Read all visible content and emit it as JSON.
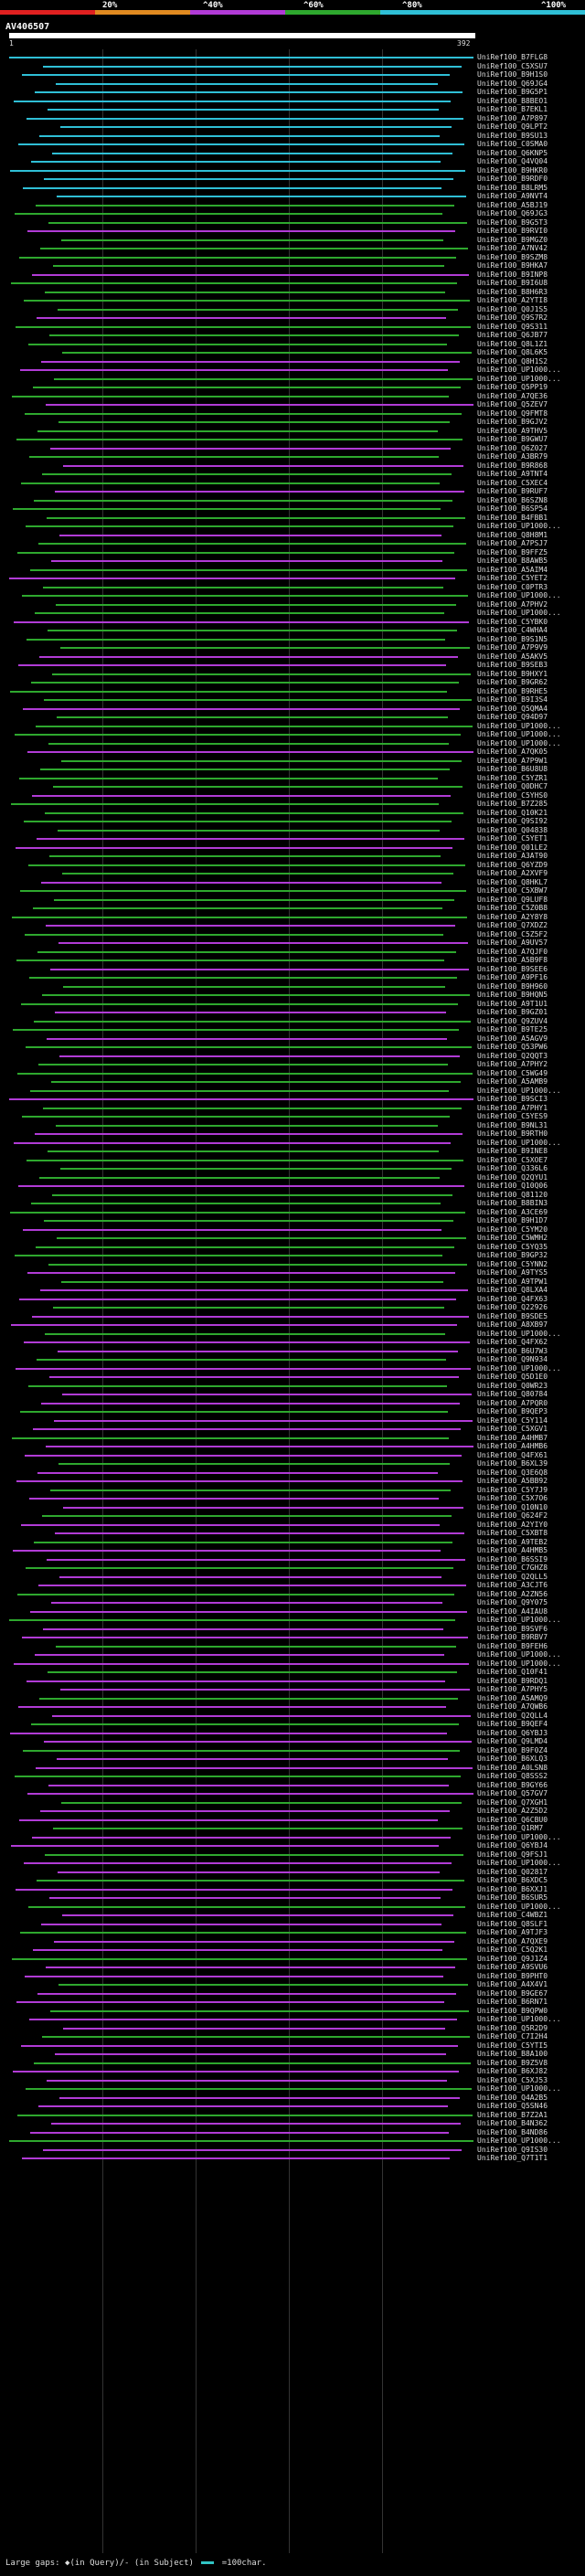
{
  "scale": {
    "ticks": [
      "20%",
      "^40%",
      "^60%",
      "^80%",
      "^100%"
    ],
    "colors": [
      "#e02020",
      "#e08a20",
      "#b13bd6",
      "#2ea82e",
      "#2fbfd6"
    ]
  },
  "query": {
    "title": "AV406507",
    "start": "1",
    "end": "392"
  },
  "legend": {
    "text": "Large gaps: ◆(in Query)/- (in Subject)",
    "segment_label": "=100char."
  },
  "hits": [
    "UniRef100_B7FLG8",
    "UniRef100_C5XSU7",
    "UniRef100_B9H1S0",
    "UniRef100_Q69JG4",
    "UniRef100_B9G5P1",
    "UniRef100_B8BEO1",
    "UniRef100_B7EKL1",
    "UniRef100_A7P897",
    "UniRef100_Q9LPT2",
    "UniRef100_B9SU13",
    "UniRef100_C0SMA0",
    "UniRef100_Q6KNP5",
    "UniRef100_Q4VQ04",
    "UniRef100_B9HKR0",
    "UniRef100_B9RDF0",
    "UniRef100_B8LRM5",
    "UniRef100_A9NVT4",
    "UniRef100_A5BJ19",
    "UniRef100_Q69JG3",
    "UniRef100_B9G5T3",
    "UniRef100_B9RVI0",
    "UniRef100_B9MGZ0",
    "UniRef100_A7NV42",
    "UniRef100_B9SZM8",
    "UniRef100_B9HKA7",
    "UniRef100_B9INP8",
    "UniRef100_B9I6U8",
    "UniRef100_B8H6R3",
    "UniRef100_A2YTI8",
    "UniRef100_Q0J1S5",
    "UniRef100_Q9S7R2",
    "UniRef100_Q9S311",
    "UniRef100_Q6JB77",
    "UniRef100_Q8L1Z1",
    "UniRef100_Q8L6K5",
    "UniRef100_Q8H1S2",
    "UniRef100_UP1000...",
    "UniRef100_UP1000...",
    "UniRef100_Q5PP19",
    "UniRef100_A7QE36",
    "UniRef100_Q5ZEV7",
    "UniRef100_Q9FMT8",
    "UniRef100_B9GJV2",
    "UniRef100_A9THV5",
    "UniRef100_B9GWU7",
    "UniRef100_Q6Z027",
    "UniRef100_A3BR79",
    "UniRef100_B9R868",
    "UniRef100_A9TNT4",
    "UniRef100_C5XEC4",
    "UniRef100_B9RUF7",
    "UniRef100_B6SZN8",
    "UniRef100_B6SP54",
    "UniRef100_B4FBB1",
    "UniRef100_UP1000...",
    "UniRef100_Q8H8M1",
    "UniRef100_A7PSJ7",
    "UniRef100_B9FFZ5",
    "UniRef100_B8AWB5",
    "UniRef100_A5AIM4",
    "UniRef100_C5YET2",
    "UniRef100_C0PTR3",
    "UniRef100_UP1000...",
    "UniRef100_A7PHV2",
    "UniRef100_UP1000...",
    "UniRef100_C5YBK0",
    "UniRef100_C4WHA4",
    "UniRef100_B9S1N5",
    "UniRef100_A7P9V9",
    "UniRef100_A5AKV5",
    "UniRef100_B9SEB3",
    "UniRef100_B9HXY1",
    "UniRef100_B9GR62",
    "UniRef100_B9RHE5",
    "UniRef100_B9I3S4",
    "UniRef100_Q5QMA4",
    "UniRef100_Q94D97",
    "UniRef100_UP1000...",
    "UniRef100_UP1000...",
    "UniRef100_UP1000...",
    "UniRef100_A7QK05",
    "UniRef100_A7P9W1",
    "UniRef100_B6U8U8",
    "UniRef100_C5YZR1",
    "UniRef100_Q0DHC7",
    "UniRef100_C5YHS0",
    "UniRef100_B7Z285",
    "UniRef100_Q10K21",
    "UniRef100_Q9SI92",
    "UniRef100_Q04838",
    "UniRef100_C5YET1",
    "UniRef100_Q01LE2",
    "UniRef100_A3AT90",
    "UniRef100_Q6YZD9",
    "UniRef100_A2XVF9",
    "UniRef100_Q8HKL7",
    "UniRef100_C5XBW7",
    "UniRef100_Q9LUF8",
    "UniRef100_C5Z0B8",
    "UniRef100_A2Y8Y8",
    "UniRef100_Q7XDZ2",
    "UniRef100_C5Z5F2",
    "UniRef100_A9UV57",
    "UniRef100_A7QJF0",
    "UniRef100_A5B9F8",
    "UniRef100_B9SEE6",
    "UniRef100_A9PF16",
    "UniRef100_B9H960",
    "UniRef100_B9HQN5",
    "UniRef100_A9T1U1",
    "UniRef100_B9GZ01",
    "UniRef100_Q9ZUV4",
    "UniRef100_B9TE25",
    "UniRef100_A5AGV9",
    "UniRef100_Q53PW6",
    "UniRef100_Q2QQT3",
    "UniRef100_A7PHY2",
    "UniRef100_C5WG49",
    "UniRef100_A5AMB9",
    "UniRef100_UP1000...",
    "UniRef100_B9SCI3",
    "UniRef100_A7PHY1",
    "UniRef100_C5YES9",
    "UniRef100_B9NL31",
    "UniRef100_B9RTH0",
    "UniRef100_UP1000...",
    "UniRef100_B9INE8",
    "UniRef100_C5XOE7",
    "UniRef100_Q336L6",
    "UniRef100_Q2QYU1",
    "UniRef100_Q10Q06",
    "UniRef100_Q81120",
    "UniRef100_B8BIN3",
    "UniRef100_A3CE69",
    "UniRef100_B9H1D7",
    "UniRef100_C5YM20",
    "UniRef100_C5WMH2",
    "UniRef100_C5YQ35",
    "UniRef100_B9GP32",
    "UniRef100_C5YNN2",
    "UniRef100_A9TYS5",
    "UniRef100_A9TPW1",
    "UniRef100_Q8LXA4",
    "UniRef100_Q4FX63",
    "UniRef100_Q22926",
    "UniRef100_B9SDE5",
    "UniRef100_A8XB97",
    "UniRef100_UP1000...",
    "UniRef100_Q4FX62",
    "UniRef100_B6U7W3",
    "UniRef100_Q9N934",
    "UniRef100_UP1000...",
    "UniRef100_Q5D1E0",
    "UniRef100_Q0WR23",
    "UniRef100_Q80784",
    "UniRef100_A7PQR0",
    "UniRef100_B9QEP3",
    "UniRef100_C5Y114",
    "UniRef100_C5XGV1",
    "UniRef100_A4HMB7",
    "UniRef100_A4HMB6",
    "UniRef100_Q4FX61",
    "UniRef100_B6XL39",
    "UniRef100_Q3E6Q8",
    "UniRef100_A5BB92",
    "UniRef100_C5Y7J9",
    "UniRef100_C5X7O6",
    "UniRef100_Q10N10",
    "UniRef100_Q624F2",
    "UniRef100_A2YIY0",
    "UniRef100_C5XBT8",
    "UniRef100_A9TEB2",
    "UniRef100_A4HMB5",
    "UniRef100_B6SSI9",
    "UniRef100_C7GHZ8",
    "UniRef100_Q2QLL5",
    "UniRef100_A3CJT6",
    "UniRef100_A2ZN56",
    "UniRef100_Q9Y075",
    "UniRef100_A4IAU8",
    "UniRef100_UP1000...",
    "UniRef100_B9SVF6",
    "UniRef100_B9RBV7",
    "UniRef100_B9FEH6",
    "UniRef100_UP1000...",
    "UniRef100_UP1000...",
    "UniRef100_Q10F41",
    "UniRef100_B9RDQ1",
    "UniRef100_A7PHY5",
    "UniRef100_A5AMQ9",
    "UniRef100_A7QWB6",
    "UniRef100_Q2QLL4",
    "UniRef100_B9QEF4",
    "UniRef100_Q6YBJ3",
    "UniRef100_Q9LMD4",
    "UniRef100_B9F0Z4",
    "UniRef100_B6XLQ3",
    "UniRef100_A0LSN8",
    "UniRef100_Q8SSS2",
    "UniRef100_B9GY66",
    "UniRef100_Q57GV7",
    "UniRef100_Q7XGH1",
    "UniRef100_A2Z5D2",
    "UniRef100_Q6CBU0",
    "UniRef100_Q1RM7",
    "UniRef100_UP1000...",
    "UniRef100_Q6YBJ4",
    "UniRef100_Q9FSJ1",
    "UniRef100_UP1000...",
    "UniRef100_Q02817",
    "UniRef100_B6XDC5",
    "UniRef100_B6XXJ1",
    "UniRef100_B6SUR5",
    "UniRef100_UP1000...",
    "UniRef100_C4WBZ1",
    "UniRef100_Q8SLF1",
    "UniRef100_A9TJF3",
    "UniRef100_A7QXE9",
    "UniRef100_C5Q2K1",
    "UniRef100_Q9J1Z4",
    "UniRef100_A9SVU6",
    "UniRef100_B9PHT0",
    "UniRef100_A4X4V1",
    "UniRef100_B9GE67",
    "UniRef100_B6RN71",
    "UniRef100_B9QPW0",
    "UniRef100_UP1000...",
    "UniRef100_Q5R2D9",
    "UniRef100_C7I2H4",
    "UniRef100_C5YTI5",
    "UniRef100_B8A100",
    "UniRef100_B9Z5V8",
    "UniRef100_B6XJ82",
    "UniRef100_C5XJ53",
    "UniRef100_UP1000...",
    "UniRef100_Q4A2B5",
    "UniRef100_Q5SN46",
    "UniRef100_B7Z2A1",
    "UniRef100_B4N362",
    "UniRef100_B4ND86",
    "UniRef100_UP1000...",
    "UniRef100_Q9IS30",
    "UniRef100_Q7T1T1"
  ]
}
